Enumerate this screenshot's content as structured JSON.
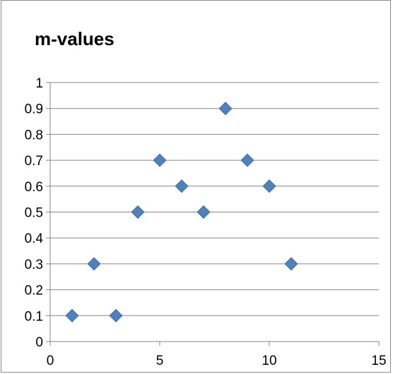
{
  "chart_data": {
    "type": "scatter",
    "title": "m-values",
    "xlabel": "",
    "ylabel": "",
    "xlim": [
      0,
      15
    ],
    "ylim": [
      0,
      1
    ],
    "x_ticks": [
      "0",
      "5",
      "10",
      "15"
    ],
    "y_ticks": [
      "0",
      "0.1",
      "0.2",
      "0.3",
      "0.4",
      "0.5",
      "0.6",
      "0.7",
      "0.8",
      "0.9",
      "1"
    ],
    "grid": "horizontal",
    "legend": "none",
    "marker": "diamond",
    "marker_color": "#4f81bd",
    "series": [
      {
        "x": [
          1,
          2,
          3,
          4,
          5,
          6,
          7,
          8,
          9,
          10,
          11
        ],
        "y": [
          0.1,
          0.3,
          0.1,
          0.5,
          0.7,
          0.6,
          0.5,
          0.9,
          0.7,
          0.6,
          0.3
        ]
      }
    ]
  }
}
